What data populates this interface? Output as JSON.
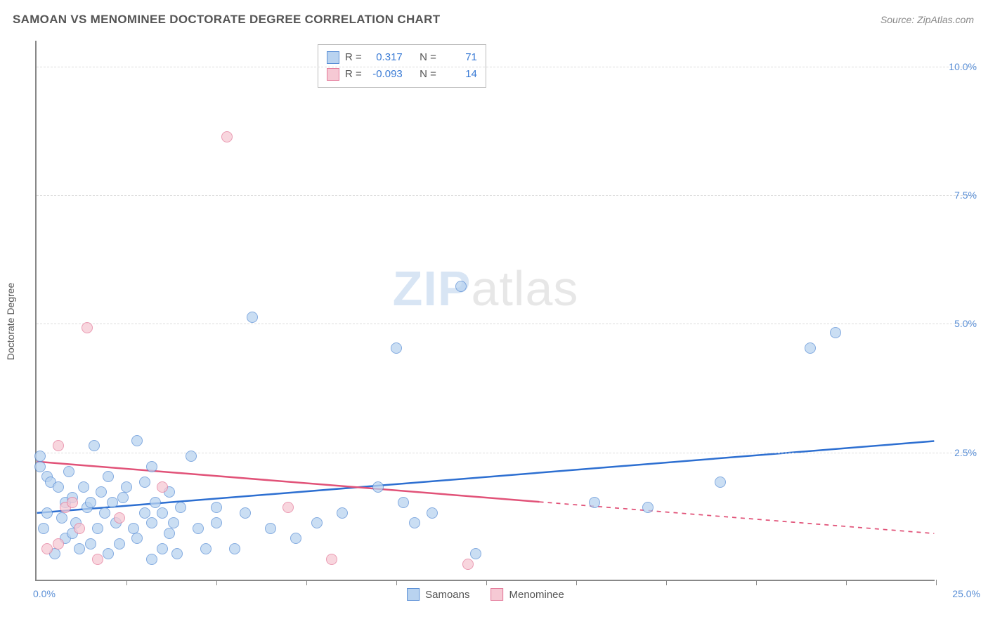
{
  "title": "SAMOAN VS MENOMINEE DOCTORATE DEGREE CORRELATION CHART",
  "source": "Source: ZipAtlas.com",
  "y_axis_label": "Doctorate Degree",
  "watermark_bold": "ZIP",
  "watermark_rest": "atlas",
  "chart": {
    "type": "scatter",
    "background_color": "#ffffff",
    "grid_color": "#dddddd",
    "axis_color": "#888888",
    "text_color": "#555555",
    "value_color": "#5a8fd6",
    "xlim": [
      0,
      25
    ],
    "ylim": [
      0,
      10.5
    ],
    "y_ticks": [
      {
        "value": 2.5,
        "label": "2.5%"
      },
      {
        "value": 5.0,
        "label": "5.0%"
      },
      {
        "value": 7.5,
        "label": "7.5%"
      },
      {
        "value": 10.0,
        "label": "10.0%"
      }
    ],
    "x_tick_step": 2.5,
    "x_origin_label": "0.0%",
    "x_max_label": "25.0%",
    "marker_radius": 8,
    "marker_stroke_width": 1,
    "trend_line_width": 2.5
  },
  "series": [
    {
      "name": "Samoans",
      "fill_color": "#b9d3f0",
      "stroke_color": "#5a8fd6",
      "trend_color": "#2d6fd1",
      "r_label": "R =",
      "r_value": "0.317",
      "n_label": "N =",
      "n_value": "71",
      "trend": {
        "x1": 0,
        "y1": 1.3,
        "x2": 25,
        "y2": 2.7,
        "dash_from_x": null
      },
      "points": [
        [
          0.1,
          2.2
        ],
        [
          0.1,
          2.4
        ],
        [
          0.2,
          1.0
        ],
        [
          0.3,
          2.0
        ],
        [
          0.3,
          1.3
        ],
        [
          0.4,
          1.9
        ],
        [
          0.5,
          0.5
        ],
        [
          0.6,
          1.8
        ],
        [
          0.7,
          1.2
        ],
        [
          0.8,
          0.8
        ],
        [
          0.8,
          1.5
        ],
        [
          0.9,
          2.1
        ],
        [
          1.0,
          0.9
        ],
        [
          1.0,
          1.6
        ],
        [
          1.1,
          1.1
        ],
        [
          1.2,
          0.6
        ],
        [
          1.3,
          1.8
        ],
        [
          1.4,
          1.4
        ],
        [
          1.5,
          1.5
        ],
        [
          1.5,
          0.7
        ],
        [
          1.6,
          2.6
        ],
        [
          1.7,
          1.0
        ],
        [
          1.8,
          1.7
        ],
        [
          1.9,
          1.3
        ],
        [
          2.0,
          2.0
        ],
        [
          2.0,
          0.5
        ],
        [
          2.1,
          1.5
        ],
        [
          2.2,
          1.1
        ],
        [
          2.3,
          0.7
        ],
        [
          2.4,
          1.6
        ],
        [
          2.5,
          1.8
        ],
        [
          2.7,
          1.0
        ],
        [
          2.8,
          2.7
        ],
        [
          2.8,
          0.8
        ],
        [
          3.0,
          1.3
        ],
        [
          3.0,
          1.9
        ],
        [
          3.2,
          1.1
        ],
        [
          3.2,
          0.4
        ],
        [
          3.2,
          2.2
        ],
        [
          3.3,
          1.5
        ],
        [
          3.5,
          0.6
        ],
        [
          3.5,
          1.3
        ],
        [
          3.7,
          1.7
        ],
        [
          3.7,
          0.9
        ],
        [
          3.8,
          1.1
        ],
        [
          3.9,
          0.5
        ],
        [
          4.0,
          1.4
        ],
        [
          4.3,
          2.4
        ],
        [
          4.5,
          1.0
        ],
        [
          4.7,
          0.6
        ],
        [
          5.0,
          1.4
        ],
        [
          5.0,
          1.1
        ],
        [
          5.5,
          0.6
        ],
        [
          5.8,
          1.3
        ],
        [
          6.0,
          5.1
        ],
        [
          6.5,
          1.0
        ],
        [
          7.2,
          0.8
        ],
        [
          7.8,
          1.1
        ],
        [
          8.5,
          1.3
        ],
        [
          9.5,
          1.8
        ],
        [
          10.0,
          4.5
        ],
        [
          10.2,
          1.5
        ],
        [
          10.5,
          1.1
        ],
        [
          11.0,
          1.3
        ],
        [
          11.8,
          5.7
        ],
        [
          12.2,
          0.5
        ],
        [
          15.5,
          1.5
        ],
        [
          17.0,
          1.4
        ],
        [
          19.0,
          1.9
        ],
        [
          21.5,
          4.5
        ],
        [
          22.2,
          4.8
        ]
      ]
    },
    {
      "name": "Menominee",
      "fill_color": "#f6c9d4",
      "stroke_color": "#e47a9a",
      "trend_color": "#e15278",
      "r_label": "R =",
      "r_value": "-0.093",
      "n_label": "N =",
      "n_value": "14",
      "trend": {
        "x1": 0,
        "y1": 2.3,
        "x2": 25,
        "y2": 0.9,
        "dash_from_x": 14
      },
      "points": [
        [
          0.3,
          0.6
        ],
        [
          0.6,
          0.7
        ],
        [
          0.6,
          2.6
        ],
        [
          0.8,
          1.4
        ],
        [
          1.0,
          1.5
        ],
        [
          1.2,
          1.0
        ],
        [
          1.4,
          4.9
        ],
        [
          1.7,
          0.4
        ],
        [
          2.3,
          1.2
        ],
        [
          3.5,
          1.8
        ],
        [
          5.3,
          8.6
        ],
        [
          7.0,
          1.4
        ],
        [
          8.2,
          0.4
        ],
        [
          12.0,
          0.3
        ]
      ]
    }
  ],
  "bottom_legend": [
    {
      "swatch": "#b9d3f0",
      "stroke": "#5a8fd6",
      "label": "Samoans"
    },
    {
      "swatch": "#f6c9d4",
      "stroke": "#e47a9a",
      "label": "Menominee"
    }
  ]
}
